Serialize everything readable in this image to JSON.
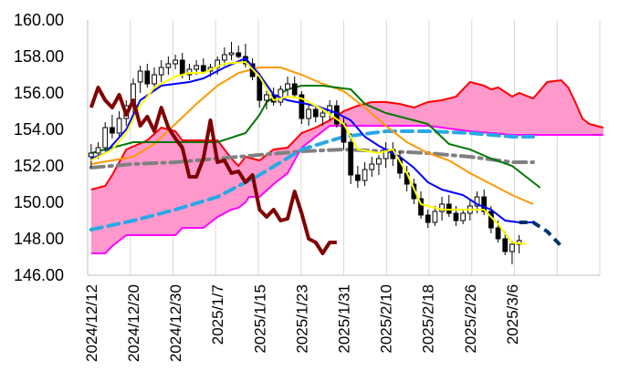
{
  "chart_data": {
    "type": "candlestick",
    "title": "",
    "xlabel": "",
    "ylabel": "",
    "ylim": [
      146,
      160
    ],
    "yticks": [
      "146.00",
      "148.00",
      "150.00",
      "152.00",
      "154.00",
      "156.00",
      "158.00",
      "160.00"
    ],
    "xtick_labels": [
      "2024/12/12",
      "2024/12/20",
      "2024/12/30",
      "2025/1/7",
      "2025/1/15",
      "2025/1/23",
      "2025/1/31",
      "2025/2/10",
      "2025/2/18",
      "2025/2/26",
      "2025/3/6"
    ],
    "xtick_index": [
      0,
      6,
      12,
      18,
      24,
      30,
      36,
      42,
      48,
      54,
      60
    ],
    "num_slots": 73,
    "grid": "vertical",
    "colors": {
      "up_candle": "#ffffff",
      "down_candle": "#000000",
      "cloud_fill": "#ff99cc",
      "span_a": "#ff0000",
      "span_b": "#ff00ff",
      "lagging": "#7f0000",
      "conversion": "#ffff00",
      "base": "#0000ff",
      "sma_short": "#ff9900",
      "sma_mid": "#007700",
      "sma_long_dash": "#808080",
      "future_base_dash": "#2aa8e6",
      "future_ext_dash": "#003366"
    },
    "candles": [
      [
        152.5,
        153.2,
        151.9,
        152.7
      ],
      [
        152.7,
        153.3,
        152.4,
        153.0
      ],
      [
        153.0,
        154.4,
        152.8,
        154.1
      ],
      [
        154.1,
        154.8,
        153.5,
        153.8
      ],
      [
        153.8,
        155.0,
        153.5,
        154.6
      ],
      [
        154.6,
        155.6,
        154.2,
        155.3
      ],
      [
        155.3,
        156.8,
        154.9,
        156.5
      ],
      [
        156.6,
        157.5,
        156.0,
        157.2
      ],
      [
        157.2,
        157.6,
        156.3,
        156.5
      ],
      [
        156.5,
        157.4,
        156.1,
        157.0
      ],
      [
        157.0,
        157.8,
        156.6,
        157.4
      ],
      [
        157.4,
        158.0,
        157.0,
        157.6
      ],
      [
        157.6,
        158.1,
        157.3,
        157.8
      ],
      [
        157.8,
        158.2,
        156.8,
        157.0
      ],
      [
        157.0,
        157.6,
        156.7,
        157.3
      ],
      [
        157.3,
        157.8,
        157.0,
        157.5
      ],
      [
        157.5,
        157.9,
        157.1,
        157.2
      ],
      [
        157.2,
        157.6,
        156.9,
        157.4
      ],
      [
        157.4,
        158.0,
        157.0,
        157.8
      ],
      [
        157.8,
        158.5,
        157.5,
        158.1
      ],
      [
        158.1,
        158.8,
        157.8,
        158.2
      ],
      [
        158.2,
        158.6,
        157.9,
        158.0
      ],
      [
        158.0,
        158.7,
        157.4,
        157.6
      ],
      [
        157.6,
        157.9,
        156.7,
        156.9
      ],
      [
        156.9,
        157.1,
        155.2,
        155.6
      ],
      [
        155.6,
        156.1,
        155.1,
        155.9
      ],
      [
        155.9,
        156.3,
        155.3,
        155.5
      ],
      [
        155.5,
        156.4,
        155.3,
        156.2
      ],
      [
        156.2,
        156.9,
        155.8,
        156.5
      ],
      [
        156.5,
        156.9,
        155.7,
        155.9
      ],
      [
        155.9,
        156.1,
        154.3,
        154.6
      ],
      [
        154.6,
        155.4,
        154.2,
        155.1
      ],
      [
        155.1,
        155.3,
        154.4,
        154.7
      ],
      [
        154.7,
        155.2,
        154.2,
        154.9
      ],
      [
        154.9,
        155.6,
        154.5,
        155.3
      ],
      [
        155.3,
        155.6,
        154.1,
        154.3
      ],
      [
        154.3,
        154.7,
        152.9,
        153.3
      ],
      [
        153.3,
        153.8,
        151.0,
        151.5
      ],
      [
        151.5,
        152.0,
        150.8,
        151.2
      ],
      [
        151.2,
        152.2,
        150.9,
        151.8
      ],
      [
        151.8,
        152.5,
        151.4,
        152.1
      ],
      [
        152.1,
        152.6,
        151.5,
        152.4
      ],
      [
        152.4,
        153.3,
        151.9,
        152.9
      ],
      [
        152.9,
        153.3,
        152.0,
        152.4
      ],
      [
        152.4,
        152.8,
        151.3,
        151.6
      ],
      [
        151.6,
        152.0,
        150.6,
        151.0
      ],
      [
        151.0,
        151.3,
        149.9,
        150.2
      ],
      [
        150.2,
        150.6,
        149.1,
        149.3
      ],
      [
        149.3,
        149.6,
        148.6,
        148.9
      ],
      [
        148.9,
        149.8,
        148.7,
        149.5
      ],
      [
        149.5,
        150.3,
        149.0,
        149.9
      ],
      [
        149.9,
        150.4,
        149.2,
        149.4
      ],
      [
        149.4,
        149.8,
        148.7,
        149.0
      ],
      [
        149.0,
        149.6,
        148.8,
        149.4
      ],
      [
        149.4,
        150.1,
        149.0,
        149.8
      ],
      [
        149.8,
        150.6,
        149.4,
        150.3
      ],
      [
        150.3,
        150.7,
        149.3,
        149.5
      ],
      [
        149.5,
        149.8,
        148.3,
        148.6
      ],
      [
        148.6,
        149.0,
        147.8,
        148.0
      ],
      [
        148.0,
        148.4,
        147.1,
        147.3
      ],
      [
        147.3,
        147.9,
        146.6,
        147.7
      ],
      [
        147.7,
        148.2,
        147.2,
        147.9
      ]
    ],
    "lines": {
      "conversion": [
        [
          0,
          152.3
        ],
        [
          3,
          152.9
        ],
        [
          5,
          153.8
        ],
        [
          7,
          155.3
        ],
        [
          9,
          156.3
        ],
        [
          12,
          156.9
        ],
        [
          14,
          157.1
        ],
        [
          16,
          157.1
        ],
        [
          19,
          157.6
        ],
        [
          22,
          157.7
        ],
        [
          24,
          156.9
        ],
        [
          26,
          155.6
        ],
        [
          28,
          155.8
        ],
        [
          30,
          155.7
        ],
        [
          33,
          155.1
        ],
        [
          36,
          154.3
        ],
        [
          38,
          152.9
        ],
        [
          41,
          152.7
        ],
        [
          43,
          152.9
        ],
        [
          45,
          151.6
        ],
        [
          47,
          149.9
        ],
        [
          50,
          149.6
        ],
        [
          53,
          149.6
        ],
        [
          56,
          149.6
        ],
        [
          58,
          148.8
        ],
        [
          60,
          147.8
        ],
        [
          62,
          147.7
        ]
      ],
      "base": [
        [
          0,
          152.4
        ],
        [
          2,
          152.7
        ],
        [
          5,
          154.0
        ],
        [
          7,
          155.6
        ],
        [
          10,
          156.4
        ],
        [
          14,
          156.6
        ],
        [
          16,
          156.8
        ],
        [
          19,
          157.4
        ],
        [
          22,
          157.9
        ],
        [
          24,
          157.0
        ],
        [
          26,
          155.9
        ],
        [
          28,
          155.6
        ],
        [
          32,
          155.3
        ],
        [
          35,
          154.9
        ],
        [
          37,
          154.5
        ],
        [
          39,
          153.6
        ],
        [
          41,
          153.1
        ],
        [
          44,
          152.5
        ],
        [
          46,
          151.9
        ],
        [
          48,
          151.1
        ],
        [
          50,
          150.7
        ],
        [
          53,
          150.4
        ],
        [
          55,
          149.9
        ],
        [
          57,
          149.6
        ],
        [
          59,
          149.0
        ],
        [
          61,
          148.9
        ],
        [
          63,
          148.9
        ]
      ],
      "sma_short": [
        [
          0,
          152.1
        ],
        [
          3,
          152.3
        ],
        [
          6,
          152.5
        ],
        [
          9,
          153.2
        ],
        [
          12,
          154.3
        ],
        [
          15,
          155.4
        ],
        [
          18,
          156.4
        ],
        [
          21,
          157.1
        ],
        [
          24,
          157.4
        ],
        [
          27,
          157.4
        ],
        [
          30,
          157.0
        ],
        [
          33,
          156.5
        ],
        [
          36,
          156.1
        ],
        [
          39,
          155.2
        ],
        [
          42,
          154.2
        ],
        [
          45,
          153.3
        ],
        [
          48,
          152.7
        ],
        [
          51,
          152.3
        ],
        [
          54,
          151.6
        ],
        [
          57,
          151.0
        ],
        [
          60,
          150.4
        ],
        [
          63,
          149.9
        ]
      ],
      "sma_mid": [
        [
          0,
          152.7
        ],
        [
          3,
          153.0
        ],
        [
          6,
          153.3
        ],
        [
          9,
          153.3
        ],
        [
          12,
          153.3
        ],
        [
          15,
          153.3
        ],
        [
          18,
          153.3
        ],
        [
          22,
          153.8
        ],
        [
          24,
          154.8
        ],
        [
          25,
          155.5
        ],
        [
          28,
          156.2
        ],
        [
          30,
          156.4
        ],
        [
          33,
          156.4
        ],
        [
          37,
          156.2
        ],
        [
          39,
          155.4
        ],
        [
          42,
          154.9
        ],
        [
          45,
          154.6
        ],
        [
          48,
          154.3
        ],
        [
          51,
          153.2
        ],
        [
          54,
          152.9
        ],
        [
          57,
          152.4
        ],
        [
          60,
          152.0
        ],
        [
          62,
          151.4
        ],
        [
          64,
          150.8
        ]
      ],
      "sma_long_dash": [
        [
          0,
          151.9
        ],
        [
          6,
          152.1
        ],
        [
          12,
          152.2
        ],
        [
          18,
          152.4
        ],
        [
          24,
          152.6
        ],
        [
          30,
          152.8
        ],
        [
          36,
          152.9
        ],
        [
          42,
          152.8
        ],
        [
          48,
          152.7
        ],
        [
          54,
          152.5
        ],
        [
          60,
          152.2
        ],
        [
          63,
          152.2
        ]
      ],
      "lagging": [
        [
          0,
          155.2
        ],
        [
          1,
          156.3
        ],
        [
          2,
          155.6
        ],
        [
          3,
          155.2
        ],
        [
          4,
          155.9
        ],
        [
          5,
          154.8
        ],
        [
          6,
          155.6
        ],
        [
          7,
          154.2
        ],
        [
          8,
          154.7
        ],
        [
          9,
          153.9
        ],
        [
          10,
          155.2
        ],
        [
          11,
          154.1
        ],
        [
          12,
          153.5
        ],
        [
          13,
          153.0
        ],
        [
          14,
          151.4
        ],
        [
          15,
          151.4
        ],
        [
          16,
          152.4
        ],
        [
          17,
          154.5
        ],
        [
          18,
          152.2
        ],
        [
          19,
          152.3
        ],
        [
          20,
          151.6
        ],
        [
          21,
          151.7
        ],
        [
          22,
          151.1
        ],
        [
          23,
          151.5
        ],
        [
          24,
          149.6
        ],
        [
          25,
          149.2
        ],
        [
          26,
          149.6
        ],
        [
          27,
          149.0
        ],
        [
          28,
          149.1
        ],
        [
          29,
          150.6
        ],
        [
          30,
          149.4
        ],
        [
          31,
          148.0
        ],
        [
          32,
          147.8
        ],
        [
          33,
          147.2
        ],
        [
          34,
          147.8
        ],
        [
          35,
          147.8
        ]
      ],
      "future_base_dash": [
        [
          0,
          148.5
        ],
        [
          6,
          149.0
        ],
        [
          12,
          149.6
        ],
        [
          18,
          150.3
        ],
        [
          24,
          151.5
        ],
        [
          30,
          152.9
        ],
        [
          36,
          153.6
        ],
        [
          42,
          153.9
        ],
        [
          48,
          153.9
        ],
        [
          54,
          153.8
        ],
        [
          60,
          153.6
        ],
        [
          63,
          153.6
        ]
      ],
      "future_ext_dash": [
        [
          61,
          148.9
        ],
        [
          63,
          148.9
        ],
        [
          65,
          148.4
        ],
        [
          67,
          147.6
        ]
      ]
    },
    "cloud": {
      "span_a": [
        [
          0,
          150.7
        ],
        [
          2,
          150.9
        ],
        [
          3,
          151.5
        ],
        [
          5,
          152.9
        ],
        [
          8,
          153.4
        ],
        [
          10,
          154.1
        ],
        [
          12,
          153.9
        ],
        [
          13,
          153.4
        ],
        [
          16,
          153.4
        ],
        [
          18,
          153.4
        ],
        [
          20,
          152.4
        ],
        [
          21,
          152.0
        ],
        [
          22,
          152.5
        ],
        [
          24,
          152.3
        ],
        [
          26,
          152.9
        ],
        [
          28,
          153.0
        ],
        [
          30,
          153.8
        ],
        [
          32,
          154.1
        ],
        [
          34,
          154.5
        ],
        [
          36,
          155.0
        ],
        [
          38,
          155.3
        ],
        [
          40,
          155.5
        ],
        [
          42,
          155.5
        ],
        [
          44,
          155.4
        ],
        [
          46,
          155.2
        ],
        [
          48,
          155.5
        ],
        [
          50,
          155.6
        ],
        [
          52,
          155.8
        ],
        [
          54,
          156.6
        ],
        [
          56,
          156.4
        ],
        [
          57,
          156.2
        ],
        [
          58,
          156.3
        ],
        [
          60,
          155.8
        ],
        [
          61,
          156.0
        ],
        [
          63,
          155.7
        ],
        [
          65,
          156.6
        ],
        [
          67,
          156.7
        ],
        [
          68,
          156.3
        ],
        [
          69,
          155.5
        ],
        [
          70,
          154.6
        ],
        [
          71,
          154.3
        ],
        [
          72,
          154.2
        ],
        [
          73,
          154.1
        ]
      ],
      "span_b": [
        [
          0,
          147.2
        ],
        [
          2,
          147.2
        ],
        [
          3,
          147.6
        ],
        [
          5,
          148.2
        ],
        [
          12,
          148.2
        ],
        [
          13,
          148.6
        ],
        [
          16,
          148.6
        ],
        [
          18,
          149.2
        ],
        [
          20,
          149.6
        ],
        [
          21,
          149.7
        ],
        [
          22,
          150.0
        ],
        [
          22.5,
          150.3
        ],
        [
          24,
          150.3
        ],
        [
          26,
          151.0
        ],
        [
          28,
          151.6
        ],
        [
          30,
          153.0
        ],
        [
          34,
          154.2
        ],
        [
          36,
          154.2
        ],
        [
          42,
          154.2
        ],
        [
          48,
          154.2
        ],
        [
          54,
          153.9
        ],
        [
          60,
          153.7
        ],
        [
          66,
          153.7
        ],
        [
          73,
          153.7
        ]
      ]
    }
  }
}
